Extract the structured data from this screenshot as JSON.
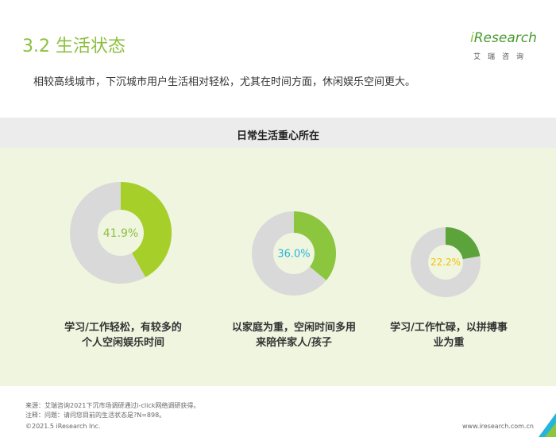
{
  "header": {
    "title": "3.2 生活状态",
    "subtitle": "相较高线城市，下沉城市用户生活相对轻松，尤其在时间方面，休闲娱乐空间更大。"
  },
  "logo": {
    "brand_i": "i",
    "brand_rest": "Research",
    "sub": "艾瑞咨询"
  },
  "section": {
    "heading": "日常生活重心所在"
  },
  "chart_data": {
    "type": "pie",
    "subtype": "donut",
    "title": "日常生活重心所在",
    "items": [
      {
        "label": "学习/工作轻松，有较多的个人空闲娱乐时间",
        "label_lines": [
          "学习/工作轻松，有较多的",
          "个人空闲娱乐时间"
        ],
        "value": 41.9,
        "value_label": "41.9%",
        "color": "#a6cf2a",
        "label_color": "#8cbf3f"
      },
      {
        "label": "以家庭为重，空闲时间多用来陪伴家人/孩子",
        "label_lines": [
          "以家庭为重，空闲时间多用",
          "来陪伴家人/孩子"
        ],
        "value": 36.0,
        "value_label": "36.0%",
        "color": "#8cc63f",
        "label_color": "#26b5d9"
      },
      {
        "label": "学习/工作忙碌，以拼搏事业为重",
        "label_lines": [
          "学习/工作忙碌，以拼搏事",
          "业为重"
        ],
        "value": 22.2,
        "value_label": "22.2%",
        "color": "#5ba33a",
        "label_color": "#f0c400"
      }
    ],
    "remainder_color": "#d9d9d9"
  },
  "footer": {
    "source": "来源：艾瑞咨询2021下沉市场调研通过i-click网络调研获得。",
    "note": "注释：问题：请问您目前的生活状态是?N=898。",
    "copyright": "©2021.5 iResearch Inc.",
    "website": "www.iresearch.com.cn"
  }
}
